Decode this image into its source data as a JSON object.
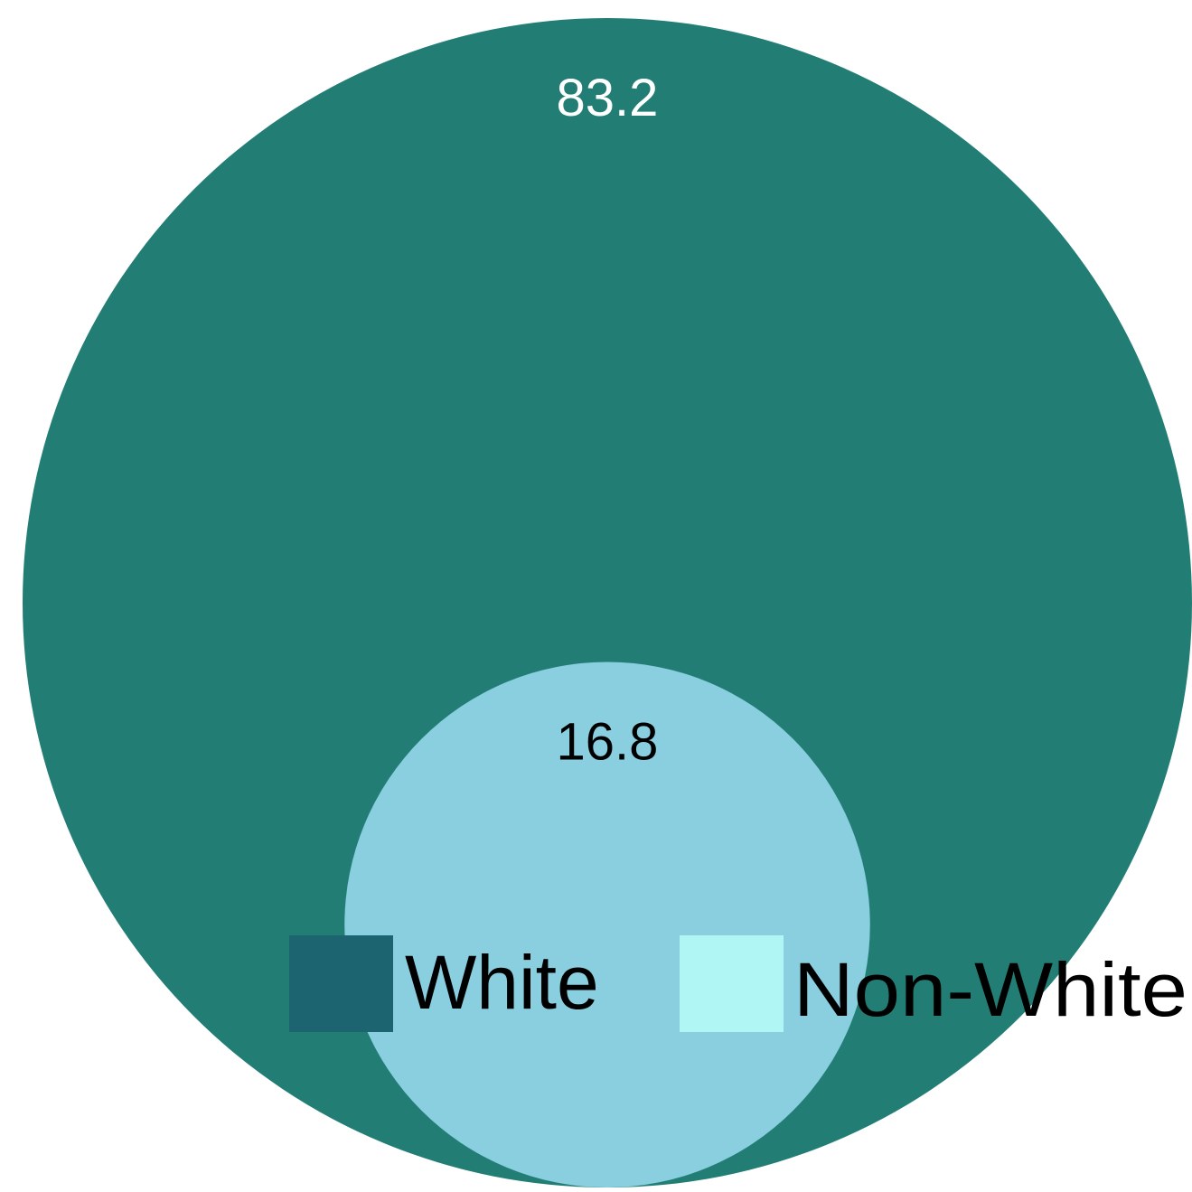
{
  "chart_data": {
    "type": "nested-circle",
    "title": "",
    "series": [
      {
        "name": "White",
        "value": 83.2,
        "fill": "#227e74",
        "legend_color": "#1b6470",
        "label_color": "#ffffff"
      },
      {
        "name": "Non-White",
        "value": 16.8,
        "fill": "#89cfe0",
        "legend_color": "#aff6f4",
        "label_color": "#000000"
      }
    ],
    "legend": {
      "position": "bottom-right"
    }
  }
}
